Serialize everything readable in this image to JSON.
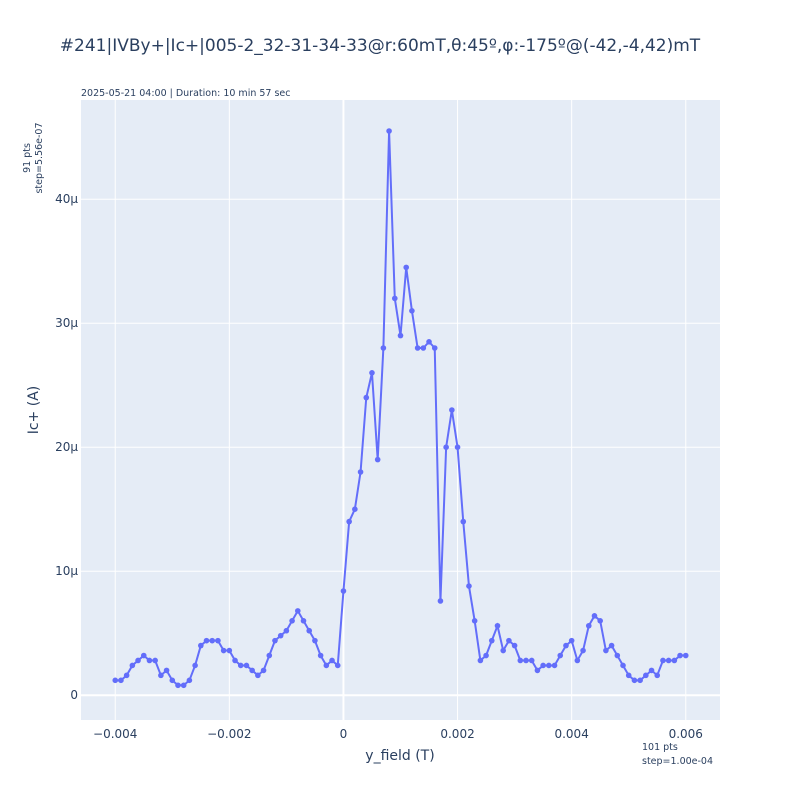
{
  "chart_data": {
    "type": "line",
    "title": "#241|IVBy+|Ic+|005-2_32-31-34-33@r:60mT,θ:45º,φ:-175º@(-42,-4,42)mT",
    "subtitle": "2025-05-21 04:00 | Duration: 10 min 57 sec",
    "xlabel": "y_field (T)",
    "ylabel": "Ic+ (A)",
    "y_note_line1": "91 pts",
    "y_note_line2": "step=5.56e-07",
    "x_note_line1": "101 pts",
    "x_note_line2": "step=1.00e-04",
    "xlim": [
      -0.0046,
      0.0066
    ],
    "ylim": [
      -2e-06,
      4.8e-05
    ],
    "x_ticks": [
      -0.004,
      -0.002,
      0,
      0.002,
      0.004,
      0.006
    ],
    "x_tick_labels": [
      "−0.004",
      "−0.002",
      "0",
      "0.002",
      "0.004",
      "0.006"
    ],
    "y_ticks": [
      0,
      1e-05,
      2e-05,
      3e-05,
      4e-05
    ],
    "y_tick_labels": [
      "0",
      "10µ",
      "20µ",
      "30µ",
      "40µ"
    ],
    "grid": true,
    "colors": {
      "line": "#636efa",
      "plot_bg": "#e5ecf6",
      "grid": "#ffffff"
    },
    "series": [
      {
        "x_start": -0.004,
        "x_step": 0.0001,
        "values": [
          1.2e-06,
          1.2e-06,
          1.6e-06,
          2.4e-06,
          2.8e-06,
          3.2e-06,
          2.8e-06,
          2.8e-06,
          1.6e-06,
          2e-06,
          1.2e-06,
          8e-07,
          8e-07,
          1.2e-06,
          2.4e-06,
          4e-06,
          4.4e-06,
          4.4e-06,
          4.4e-06,
          3.6e-06,
          3.6e-06,
          2.8e-06,
          2.4e-06,
          2.4e-06,
          2e-06,
          1.6e-06,
          2e-06,
          3.2e-06,
          4.4e-06,
          4.8e-06,
          5.2e-06,
          6e-06,
          6.8e-06,
          6e-06,
          5.2e-06,
          4.4e-06,
          3.2e-06,
          2.4e-06,
          2.8e-06,
          2.4e-06,
          8.4e-06,
          1.4e-05,
          1.5e-05,
          1.8e-05,
          2.4e-05,
          2.6e-05,
          1.9e-05,
          2.8e-05,
          4.55e-05,
          3.2e-05,
          2.9e-05,
          3.45e-05,
          3.1e-05,
          2.8e-05,
          2.8e-05,
          2.85e-05,
          2.8e-05,
          7.6e-06,
          2e-05,
          2.3e-05,
          2e-05,
          1.4e-05,
          8.8e-06,
          6e-06,
          2.8e-06,
          3.2e-06,
          4.4e-06,
          5.6e-06,
          3.6e-06,
          4.4e-06,
          4e-06,
          2.8e-06,
          2.8e-06,
          2.8e-06,
          2e-06,
          2.4e-06,
          2.4e-06,
          2.4e-06,
          3.2e-06,
          4e-06,
          4.4e-06,
          2.8e-06,
          3.6e-06,
          5.6e-06,
          6.4e-06,
          6e-06,
          3.6e-06,
          4e-06,
          3.2e-06,
          2.4e-06,
          1.6e-06,
          1.2e-06,
          1.2e-06,
          1.6e-06,
          2e-06,
          1.6e-06,
          2.8e-06,
          2.8e-06,
          2.8e-06,
          3.2e-06,
          3.2e-06
        ]
      }
    ]
  }
}
